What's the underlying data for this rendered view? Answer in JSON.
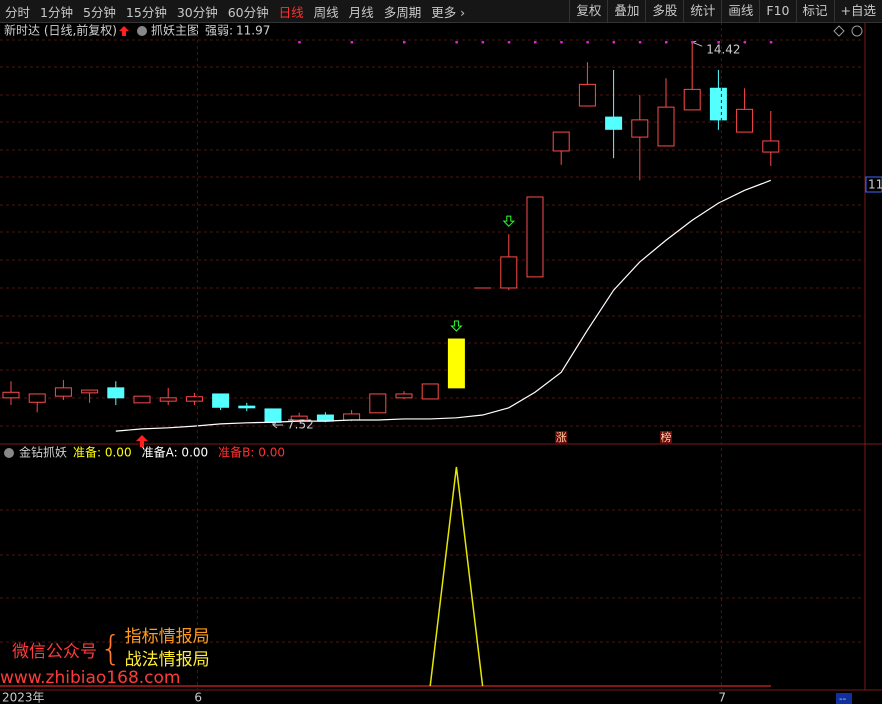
{
  "toolbar": {
    "left": [
      "分时",
      "1分钟",
      "5分钟",
      "15分钟",
      "30分钟",
      "60分钟",
      "日线",
      "周线",
      "月线",
      "多周期",
      "更多 ›"
    ],
    "selected": 6,
    "right": [
      "复权",
      "叠加",
      "多股",
      "统计",
      "画线",
      "F10",
      "标记",
      "+自选"
    ]
  },
  "chart_data": [
    {
      "type": "candlestick",
      "title": "新时达 (日线,前复权)",
      "indicator": "抓妖主图",
      "strength_label": "强弱:",
      "strength": 11.97,
      "right_label": "11",
      "open": [
        8.01,
        7.93,
        8.04,
        8.1,
        8.19,
        7.92,
        7.95,
        7.95,
        8.08,
        7.86,
        7.81,
        7.61,
        7.7,
        7.61,
        7.74,
        8.01,
        7.99,
        8.19,
        9.99,
        9.99,
        10.19,
        12.46,
        13.27,
        13.07,
        12.71,
        12.55,
        13.2,
        13.59,
        12.8,
        12.44
      ],
      "high": [
        8.31,
        8.08,
        8.33,
        8.15,
        8.31,
        8.04,
        8.19,
        8.1,
        8.08,
        7.92,
        7.81,
        7.74,
        7.75,
        7.79,
        8.08,
        8.13,
        8.26,
        9.07,
        9.99,
        10.96,
        11.63,
        12.8,
        14.06,
        13.92,
        13.47,
        13.77,
        14.42,
        13.92,
        13.59,
        13.18
      ],
      "low": [
        7.88,
        7.75,
        7.97,
        7.92,
        7.88,
        7.92,
        7.88,
        7.88,
        7.79,
        7.77,
        7.52,
        7.57,
        7.57,
        7.59,
        7.74,
        7.99,
        7.99,
        8.19,
        9.99,
        9.95,
        10.19,
        12.21,
        13.27,
        12.33,
        11.93,
        12.55,
        13.2,
        12.84,
        12.8,
        12.19
      ],
      "close": [
        8.11,
        8.08,
        8.19,
        8.15,
        8.01,
        8.04,
        8.01,
        8.03,
        7.84,
        7.83,
        7.57,
        7.68,
        7.59,
        7.72,
        8.08,
        8.08,
        8.26,
        9.07,
        9.99,
        10.55,
        11.63,
        12.8,
        13.66,
        12.85,
        13.02,
        13.25,
        13.57,
        13.02,
        13.21,
        12.64
      ],
      "ma": [
        null,
        null,
        null,
        null,
        7.41,
        7.45,
        7.47,
        7.5,
        7.54,
        7.56,
        7.57,
        7.59,
        7.59,
        7.61,
        7.61,
        7.63,
        7.63,
        7.65,
        7.7,
        7.83,
        8.11,
        8.47,
        9.23,
        9.95,
        10.46,
        10.85,
        11.21,
        11.52,
        11.75,
        11.93
      ],
      "colors": {
        "up": "#ff4a4a",
        "down": "#54ffff",
        "highlight": "#ffff00",
        "ma": "#ffffff"
      },
      "highlight": 17,
      "ylim": [
        7.25,
        14.64
      ],
      "annotations": [
        {
          "value": 14.42,
          "index": 26
        },
        {
          "value": 7.52,
          "index": 10
        }
      ],
      "buy_signals": [
        5
      ],
      "sell_signals": [
        17,
        19
      ],
      "dots": [
        11,
        13,
        15,
        17,
        18,
        19,
        20,
        21,
        22,
        23,
        24,
        25,
        26,
        27,
        28,
        29
      ],
      "tags": [
        {
          "text": "涨",
          "index": 21
        },
        {
          "text": "榜",
          "index": 25
        }
      ],
      "x_labels": [
        {
          "text": "2023年",
          "index": 0
        },
        {
          "text": "6",
          "index": 7
        },
        {
          "text": "7",
          "index": 27
        }
      ]
    },
    {
      "type": "line",
      "title": "金钻抓妖",
      "header_items": [
        {
          "text": "准备: 0.00",
          "color": "#ffff00"
        },
        {
          "text": "准备A: 0.00",
          "color": "#ffffff"
        },
        {
          "text": "准备B: 0.00",
          "color": "#ff3030"
        }
      ],
      "series": [
        {
          "color": "#e6e600",
          "values": [
            null,
            null,
            null,
            null,
            null,
            null,
            null,
            null,
            null,
            null,
            null,
            null,
            null,
            null,
            null,
            null,
            0,
            1,
            0,
            null,
            null,
            null,
            null,
            null,
            null,
            null,
            null,
            null,
            null,
            null
          ]
        }
      ],
      "ylim": [
        0,
        1.05
      ]
    }
  ],
  "watermark": {
    "label": "微信公众号",
    "line1": "指标情报局",
    "line2": "战法情报局",
    "url": "www.zhibiao168.com"
  },
  "corner": "--"
}
